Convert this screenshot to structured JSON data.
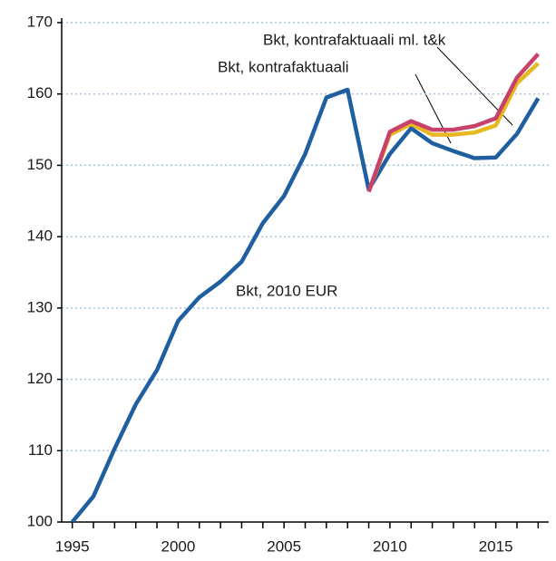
{
  "chart_data": {
    "type": "line",
    "x": [
      1995,
      1996,
      1997,
      1998,
      1999,
      2000,
      2001,
      2002,
      2003,
      2004,
      2005,
      2006,
      2007,
      2008,
      2009,
      2010,
      2011,
      2012,
      2013,
      2014,
      2015,
      2016,
      2017
    ],
    "series": [
      {
        "name": "Bkt, 2010 EUR",
        "color": "#1f5fa0",
        "values": [
          100,
          103.6,
          110.3,
          116.5,
          121.3,
          128.2,
          131.5,
          133.7,
          136.5,
          141.9,
          145.7,
          151.6,
          159.5,
          160.6,
          146.6,
          151.6,
          155.2,
          153.1,
          152,
          151,
          151.1,
          154.4,
          159.4
        ]
      },
      {
        "name": "Bkt, kontrafaktuaali",
        "color": "#e8b820",
        "values": [
          null,
          null,
          null,
          null,
          null,
          null,
          null,
          null,
          null,
          null,
          null,
          null,
          null,
          null,
          146.3,
          154.3,
          155.8,
          154.3,
          154.3,
          154.6,
          155.6,
          161.5,
          164.3
        ]
      },
      {
        "name": "Bkt, kontrafaktuaali ml. t&k",
        "color": "#c8416a",
        "values": [
          null,
          null,
          null,
          null,
          null,
          null,
          null,
          null,
          null,
          null,
          null,
          null,
          null,
          null,
          146.3,
          154.7,
          156.2,
          155,
          155,
          155.5,
          156.6,
          162.3,
          165.6
        ]
      }
    ],
    "xlim": [
      1994.5,
      2017.5
    ],
    "xticks": [
      1995,
      2000,
      2005,
      2010,
      2015
    ],
    "ylim": [
      100,
      170
    ],
    "yticks": [
      100,
      110,
      120,
      130,
      140,
      150,
      160,
      170
    ],
    "grid": true
  }
}
